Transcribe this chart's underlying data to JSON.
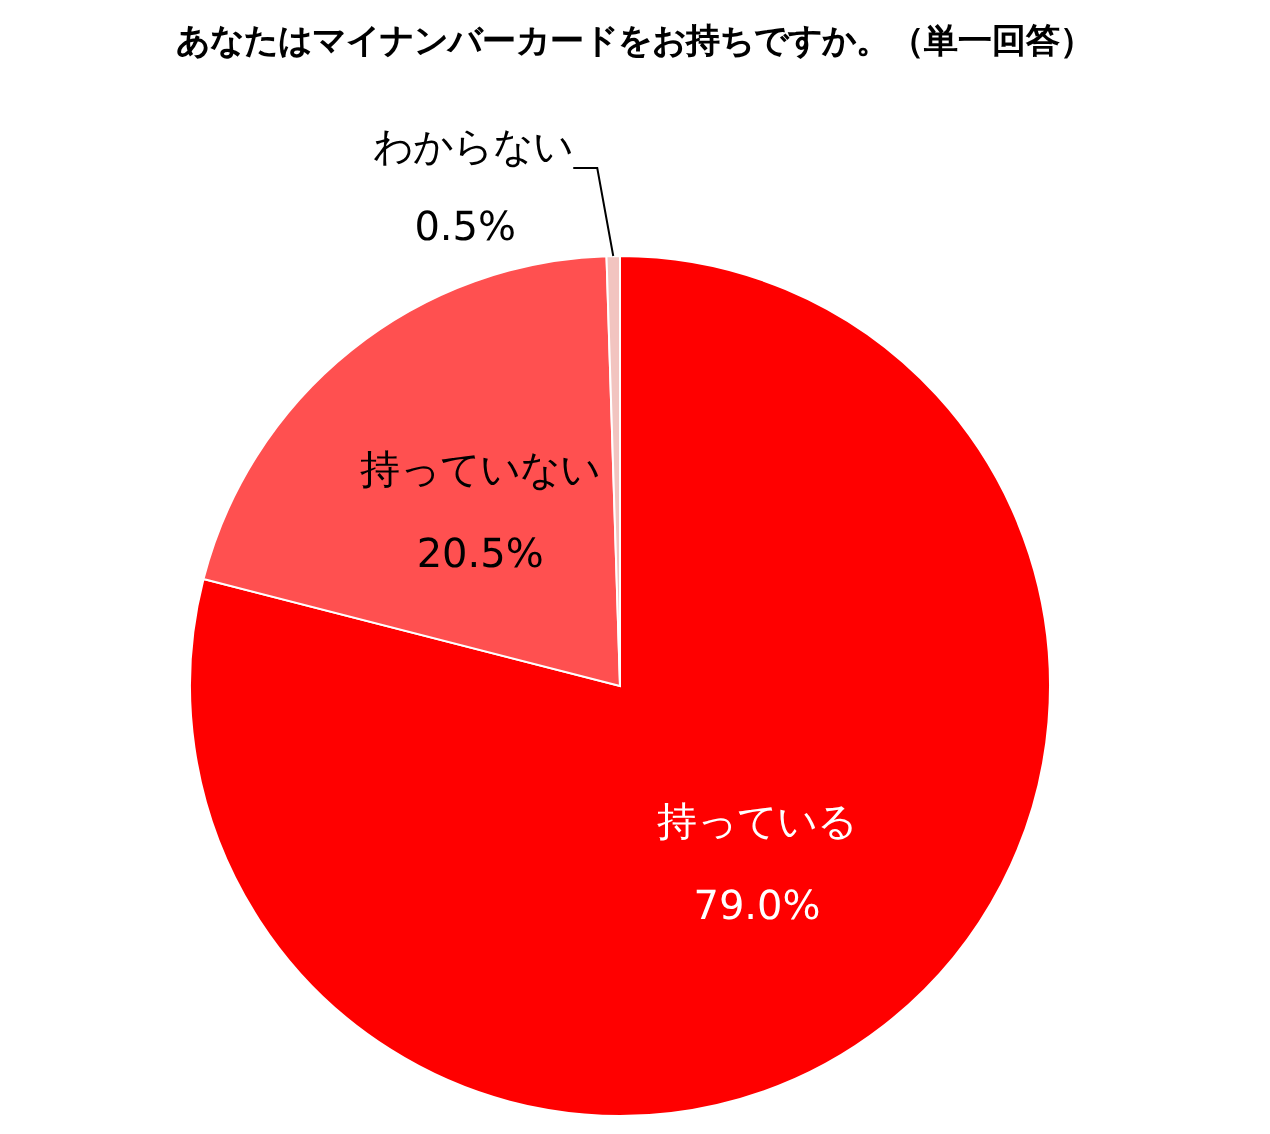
{
  "chart_data": {
    "type": "pie",
    "title": "あなたはマイナンバーカードをお持ちですか。（単一回答）",
    "categories": [
      "持っている",
      "持っていない",
      "わからない"
    ],
    "values": [
      79.0,
      20.5,
      0.5
    ],
    "value_labels": [
      "79.0%",
      "20.5%",
      "0.5%"
    ],
    "colors": [
      "#ff0000",
      "#ff5050",
      "#f2c4c0"
    ]
  }
}
